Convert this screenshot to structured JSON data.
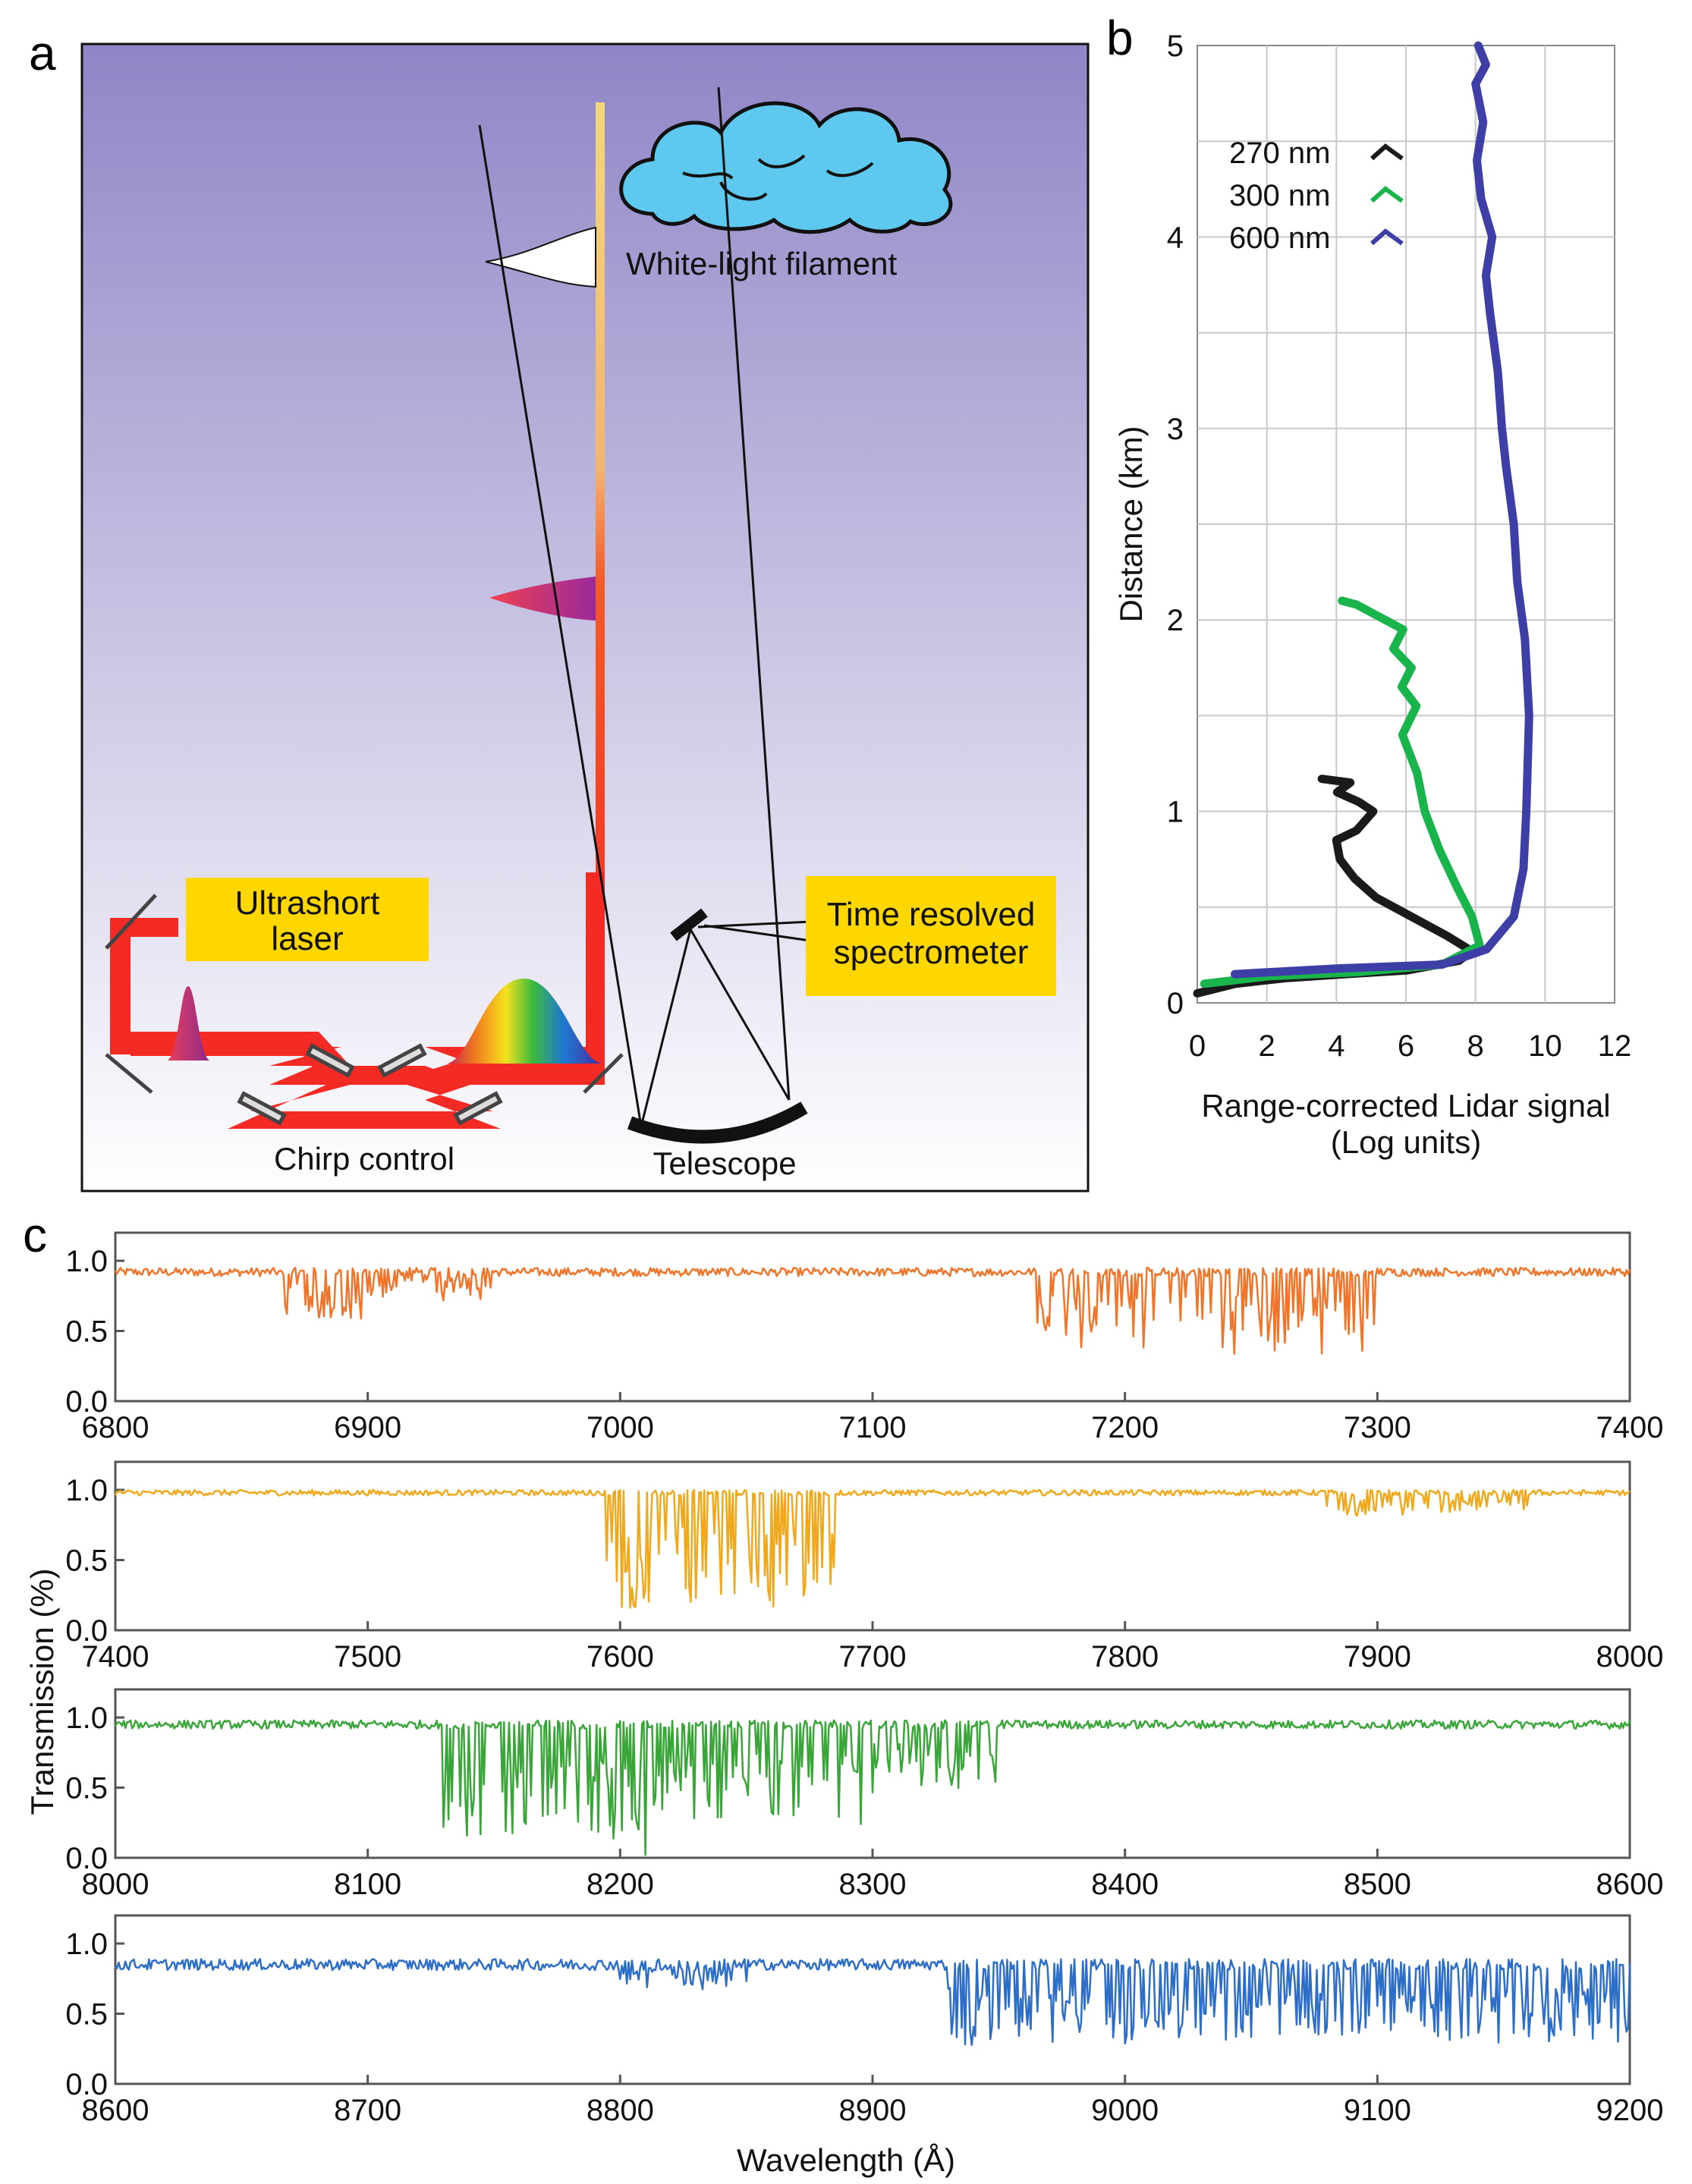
{
  "panels": {
    "a": {
      "letter": "a",
      "labels": {
        "ultrashort_1": "Ultrashort",
        "ultrashort_2": "laser",
        "spectrometer_1": "Time resolved",
        "spectrometer_2": "spectrometer",
        "filament": "White-light filament",
        "chirp": "Chirp control",
        "telescope": "Telescope"
      }
    },
    "b": {
      "letter": "b"
    },
    "c": {
      "letter": "c"
    }
  },
  "colors": {
    "sky_top": "#8f86c6",
    "sky_bottom": "#ffffff",
    "laser_red": "#f42a24",
    "label_bg": "#ffd700",
    "cloud": "#5fc8ee",
    "s270": "#1a1a1a",
    "s300": "#19b44c",
    "s600": "#3d3fa6",
    "band1": "#f0752a",
    "band2": "#f0a81c",
    "band3": "#3aa63a",
    "band4": "#2d6ec8"
  },
  "chart_data": [
    {
      "type": "line",
      "panel": "b",
      "xlabel_line1": "Range-corrected Lidar signal",
      "xlabel_line2": "(Log units)",
      "ylabel": "Distance (km)",
      "xlim": [
        0,
        12
      ],
      "ylim": [
        0,
        5
      ],
      "xticks": [
        "0",
        "2",
        "4",
        "6",
        "8",
        "10",
        "12"
      ],
      "yticks": [
        "0",
        "1",
        "2",
        "3",
        "4",
        "5"
      ],
      "grid": true,
      "legend_position": "top-left",
      "series": [
        {
          "name": "270 nm",
          "color": "#1a1a1a",
          "x": [
            0.1,
            1.0,
            2.5,
            4.2,
            6.0,
            7.5,
            7.9,
            7.2,
            6.2,
            5.2,
            4.6,
            4.2,
            3.9,
            4.5,
            5.0,
            4.6,
            4.0,
            4.4,
            3.6
          ],
          "y": [
            0.05,
            0.1,
            0.13,
            0.15,
            0.17,
            0.22,
            0.27,
            0.35,
            0.45,
            0.55,
            0.65,
            0.75,
            0.85,
            0.9,
            1.0,
            1.05,
            1.1,
            1.15,
            1.17
          ]
        },
        {
          "name": "300 nm",
          "color": "#19b44c",
          "x": [
            0.1,
            2.0,
            4.5,
            7.0,
            8.1,
            7.9,
            7.5,
            7.0,
            6.6,
            6.4,
            6.0,
            6.2,
            5.8,
            6.1,
            5.6,
            5.9,
            5.2,
            4.6,
            4.2
          ],
          "y": [
            0.1,
            0.14,
            0.16,
            0.2,
            0.3,
            0.45,
            0.6,
            0.8,
            1.0,
            1.2,
            1.4,
            1.55,
            1.65,
            1.75,
            1.85,
            1.95,
            2.02,
            2.08,
            2.1
          ]
        },
        {
          "name": "600 nm",
          "color": "#3d3fa6",
          "x": [
            1.0,
            4.0,
            7.0,
            8.3,
            9.1,
            9.4,
            9.5,
            9.6,
            9.5,
            9.3,
            9.0,
            8.8,
            8.7,
            8.6,
            8.4,
            8.3,
            8.5,
            8.2,
            8.1,
            8.3,
            8.1,
            8.2,
            8.0
          ],
          "y": [
            0.15,
            0.18,
            0.2,
            0.28,
            0.45,
            0.7,
            1.0,
            1.5,
            1.9,
            2.2,
            2.5,
            2.8,
            3.0,
            3.3,
            3.6,
            3.8,
            4.0,
            4.2,
            4.4,
            4.6,
            4.8,
            4.9,
            5.0
          ]
        }
      ]
    },
    {
      "type": "line",
      "panel": "c",
      "xlabel": "Wavelength (Å)",
      "ylabel": "Transmission (%)",
      "yticks": [
        "0.0",
        "0.5",
        "1.0"
      ],
      "ylim": [
        0,
        1.2
      ],
      "rows": [
        {
          "xlim": [
            6800,
            7400
          ],
          "xticks": [
            "6800",
            "6900",
            "7000",
            "7100",
            "7200",
            "7300",
            "7400"
          ],
          "color": "#f0752a",
          "baseline": 0.92,
          "noise": 0.03,
          "absorption_bands": [
            {
              "from": 6865,
              "to": 6900,
              "depth": 0.35
            },
            {
              "from": 6900,
              "to": 6950,
              "depth": 0.18
            },
            {
              "from": 7165,
              "to": 7240,
              "depth": 0.55
            },
            {
              "from": 7240,
              "to": 7300,
              "depth": 0.6
            }
          ]
        },
        {
          "xlim": [
            7400,
            8000
          ],
          "xticks": [
            "7400",
            "7500",
            "7600",
            "7700",
            "7800",
            "7900",
            "8000"
          ],
          "color": "#f0a81c",
          "baseline": 0.98,
          "noise": 0.02,
          "absorption_bands": [
            {
              "from": 7593,
              "to": 7610,
              "depth": 0.85
            },
            {
              "from": 7610,
              "to": 7685,
              "depth": 0.8
            },
            {
              "from": 7880,
              "to": 7960,
              "depth": 0.15
            }
          ]
        },
        {
          "xlim": [
            8000,
            8600
          ],
          "xticks": [
            "8000",
            "8100",
            "8200",
            "8300",
            "8400",
            "8500",
            "8600"
          ],
          "color": "#3aa63a",
          "baseline": 0.95,
          "noise": 0.03,
          "absorption_bands": [
            {
              "from": 8130,
              "to": 8210,
              "depth": 0.8
            },
            {
              "from": 8210,
              "to": 8300,
              "depth": 0.7
            },
            {
              "from": 8300,
              "to": 8350,
              "depth": 0.45
            }
          ]
        },
        {
          "xlim": [
            8600,
            9200
          ],
          "xticks": [
            "8600",
            "8700",
            "8800",
            "8900",
            "9000",
            "9100",
            "9200"
          ],
          "color": "#2d6ec8",
          "baseline": 0.85,
          "noise": 0.04,
          "absorption_bands": [
            {
              "from": 8800,
              "to": 8850,
              "depth": 0.15
            },
            {
              "from": 8930,
              "to": 9200,
              "depth": 0.55
            }
          ]
        }
      ]
    }
  ]
}
